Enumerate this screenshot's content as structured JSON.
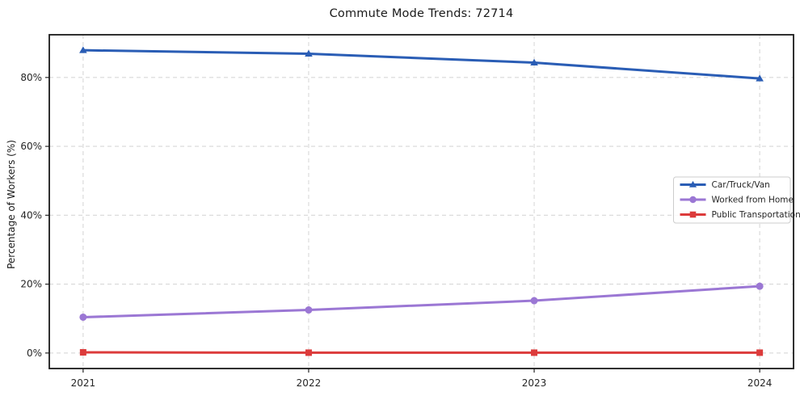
{
  "chart_data": {
    "type": "line",
    "title": "Commute Mode Trends: 72714",
    "xlabel": "",
    "ylabel": "Percentage of Workers (%)",
    "categories": [
      "2021",
      "2022",
      "2023",
      "2024"
    ],
    "series": [
      {
        "name": "Car/Truck/Van",
        "values": [
          87.9,
          86.9,
          84.3,
          79.7
        ],
        "color": "#2a5db5",
        "marker": "triangle-up"
      },
      {
        "name": "Worked from Home",
        "values": [
          10.4,
          12.5,
          15.2,
          19.4
        ],
        "color": "#9b77d4",
        "marker": "circle"
      },
      {
        "name": "Public Transportation",
        "values": [
          0.2,
          0.1,
          0.1,
          0.1
        ],
        "color": "#dc3b3b",
        "marker": "square"
      }
    ],
    "yticks": [
      0,
      20,
      40,
      60,
      80
    ],
    "ytick_labels": [
      "0%",
      "20%",
      "40%",
      "60%",
      "80%"
    ],
    "ylim": [
      -4.5,
      92.4
    ],
    "grid": "dashed-both-axes",
    "legend_position": "center-right"
  },
  "style_colors": {
    "grid": "#d8d8d8",
    "spine": "#1a1a1a",
    "tick": "#262626",
    "legend_border": "#cccccc",
    "legend_bg": "rgba(255,255,255,0.85)"
  }
}
